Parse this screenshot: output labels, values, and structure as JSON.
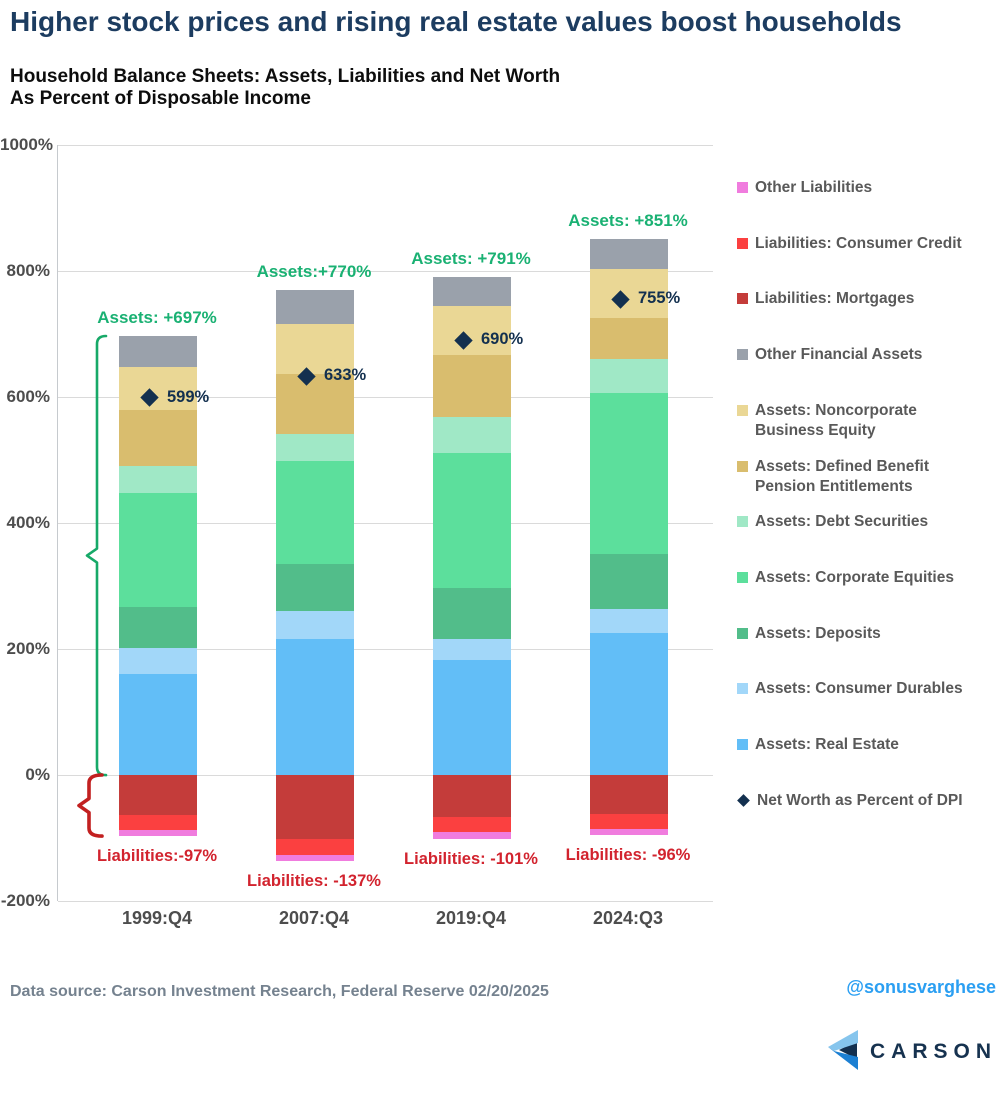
{
  "page": {
    "title": "Higher stock prices and rising real estate values boost households",
    "subtitle_line1": "Household Balance Sheets: Assets, Liabilities and Net Worth",
    "subtitle_line2": "As Percent of Disposable Income",
    "footer": {
      "data_source": "Data source: Carson Investment Research, Federal Reserve   02/20/2025",
      "handle": "@sonusvarghese",
      "logo_text": "CARSON"
    }
  },
  "chart_data": {
    "type": "bar",
    "stacked": true,
    "grid": true,
    "legend_position": "right",
    "categories": [
      "1999:Q4",
      "2007:Q4",
      "2019:Q4",
      "2024:Q3"
    ],
    "ylim": [
      -200,
      1000
    ],
    "y_ticks": [
      "1000%",
      "800%",
      "600%",
      "400%",
      "200%",
      "0%",
      "-200%"
    ],
    "series": [
      {
        "name": "Assets: Real Estate",
        "color": "#62BEF7",
        "values": [
          161,
          216,
          182,
          226
        ]
      },
      {
        "name": "Assets: Consumer Durables",
        "color": "#A2D7F9",
        "values": [
          40,
          44,
          34,
          38
        ]
      },
      {
        "name": "Assets: Deposits",
        "color": "#52BD8A",
        "values": [
          66,
          75,
          81,
          87
        ]
      },
      {
        "name": "Assets: Corporate Equities",
        "color": "#5CDF9C",
        "values": [
          181,
          164,
          214,
          255
        ]
      },
      {
        "name": "Assets: Debt Securities",
        "color": "#A0E8C6",
        "values": [
          42,
          43,
          58,
          55
        ]
      },
      {
        "name": "Assets: Defined Benefit Pension Entitlements",
        "color": "#D9BD6E",
        "values": [
          89,
          95,
          98,
          64
        ]
      },
      {
        "name": "Assets: Noncorporate Business Equity",
        "color": "#EAD795",
        "values": [
          68,
          79,
          78,
          78
        ]
      },
      {
        "name": "Other Financial Assets",
        "color": "#9AA1AB",
        "values": [
          50,
          54,
          46,
          48
        ]
      },
      {
        "name": "Liabilities: Mortgages",
        "color": "#C43C3A",
        "values": [
          -64,
          -102,
          -66,
          -62
        ]
      },
      {
        "name": "Liabilities: Consumer Credit",
        "color": "#FB4040",
        "values": [
          -24,
          -25,
          -24,
          -24
        ]
      },
      {
        "name": "Other Liabilities",
        "color": "#F07CDE",
        "values": [
          -9,
          -10,
          -11,
          -10
        ]
      }
    ],
    "net_worth_markers": {
      "name": "Net Worth as Percent of DPI",
      "color": "#13304F",
      "values": [
        599,
        633,
        690,
        755
      ],
      "labels": [
        "599%",
        "633%",
        "690%",
        "755%"
      ]
    },
    "asset_totals": [
      697,
      770,
      791,
      851
    ],
    "asset_total_labels": [
      "Assets: +697%",
      "Assets:+770%",
      "Assets: +791%",
      "Assets: +851%"
    ],
    "liability_totals": [
      -97,
      -137,
      -101,
      -96
    ],
    "liability_total_labels": [
      "Liabilities:-97%",
      "Liabilities: -137%",
      "Liabilities: -101%",
      "Liabilities: -96%"
    ],
    "colors": {
      "assets_text": "#1AB173",
      "liabilities_text": "#D2232E",
      "assets_brace": "#17A968",
      "liabilities_brace": "#C22020",
      "net_worth": "#13304F",
      "gridline": "#DADADA"
    },
    "legend": [
      {
        "lines": [
          "Other Liabilities"
        ],
        "color": "#F07CDE",
        "marker": "square"
      },
      {
        "lines": [
          "Liabilities: Consumer Credit"
        ],
        "color": "#FB4040",
        "marker": "square"
      },
      {
        "lines": [
          "Liabilities: Mortgages"
        ],
        "color": "#C43C3A",
        "marker": "square"
      },
      {
        "lines": [
          "Other Financial Assets"
        ],
        "color": "#9AA1AB",
        "marker": "square"
      },
      {
        "lines": [
          "Assets: Noncorporate",
          "Business Equity"
        ],
        "color": "#EAD795",
        "marker": "square"
      },
      {
        "lines": [
          "Assets: Defined Benefit",
          "Pension Entitlements"
        ],
        "color": "#D9BD6E",
        "marker": "square"
      },
      {
        "lines": [
          "Assets: Debt Securities"
        ],
        "color": "#A0E8C6",
        "marker": "square"
      },
      {
        "lines": [
          "Assets: Corporate Equities"
        ],
        "color": "#5CDF9C",
        "marker": "square"
      },
      {
        "lines": [
          "Assets: Deposits"
        ],
        "color": "#52BD8A",
        "marker": "square"
      },
      {
        "lines": [
          "Assets: Consumer Durables"
        ],
        "color": "#A2D7F9",
        "marker": "square"
      },
      {
        "lines": [
          "Assets: Real Estate"
        ],
        "color": "#62BEF7",
        "marker": "square"
      },
      {
        "lines": [
          "Net Worth as Percent of DPI"
        ],
        "color": "#13304F",
        "marker": "diamond"
      }
    ]
  }
}
